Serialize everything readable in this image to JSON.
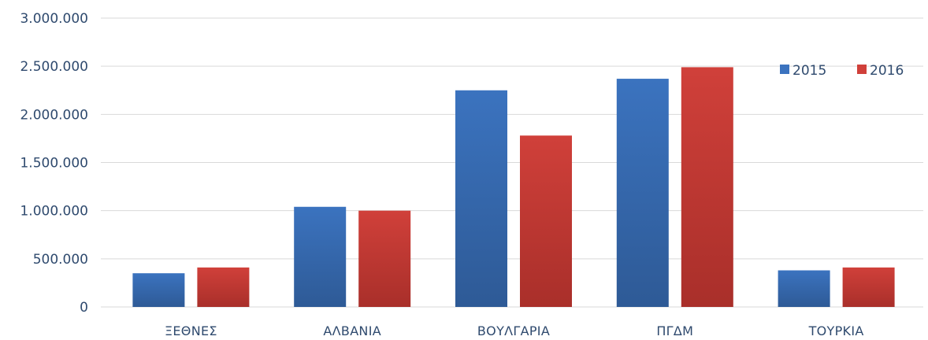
{
  "chart_data": {
    "type": "bar",
    "title": "",
    "xlabel": "",
    "ylabel": "",
    "categories": [
      "ΞΕΘΝΕΣ",
      "ΑΛΒΑΝΙΑ",
      "ΒΟΥΛΓΑΡΙΑ",
      "ΠΓΔΜ",
      "ΤΟΥΡΚΙΑ"
    ],
    "series": [
      {
        "name": "2015",
        "values": [
          350000,
          1040000,
          2250000,
          2370000,
          380000
        ],
        "color": "#3b73bf",
        "color_dark": "#2e5a96"
      },
      {
        "name": "2016",
        "values": [
          410000,
          1000000,
          1780000,
          2490000,
          410000
        ],
        "color": "#d0403a",
        "color_dark": "#a92f2a"
      }
    ],
    "ylim": [
      0,
      3000000
    ],
    "yticks": [
      0,
      500000,
      1000000,
      1500000,
      2000000,
      2500000,
      3000000
    ],
    "ytick_labels": [
      "0",
      "500.000",
      "1.000.000",
      "1.500.000",
      "2.000.000",
      "2.500.000",
      "3.000.000"
    ],
    "grid": true,
    "legend_position": "top-right",
    "colors": {
      "grid": "#d9d9d9",
      "text": "#2f4a6e"
    }
  }
}
